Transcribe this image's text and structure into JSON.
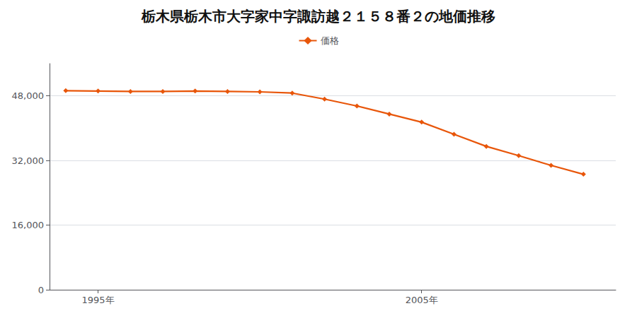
{
  "chart_data": {
    "type": "line",
    "title": "栃木県栃木市大字家中字諏訪越２１５８番２の地価推移",
    "x": [
      1994,
      1995,
      1996,
      1997,
      1998,
      1999,
      2000,
      2001,
      2002,
      2003,
      2004,
      2005,
      2006,
      2007,
      2008,
      2009,
      2010
    ],
    "series": [
      {
        "name": "価格",
        "color": "#e8560a",
        "marker": "diamond",
        "values": [
          49300,
          49200,
          49100,
          49100,
          49200,
          49100,
          49000,
          48700,
          47200,
          45500,
          43500,
          41500,
          38500,
          35500,
          33200,
          30800,
          28600
        ]
      }
    ],
    "xlim": [
      1993.5,
      2011
    ],
    "xticks": [
      {
        "value": 1995,
        "label": "1995年"
      },
      {
        "value": 2005,
        "label": "2005年"
      }
    ],
    "ylim": [
      0,
      56000
    ],
    "yticks": [
      0,
      {
        "value": 16000,
        "label": "16,000"
      },
      {
        "value": 32000,
        "label": "32,000"
      },
      {
        "value": 48000,
        "label": "48,000"
      }
    ],
    "grid": true,
    "legend": "top"
  }
}
